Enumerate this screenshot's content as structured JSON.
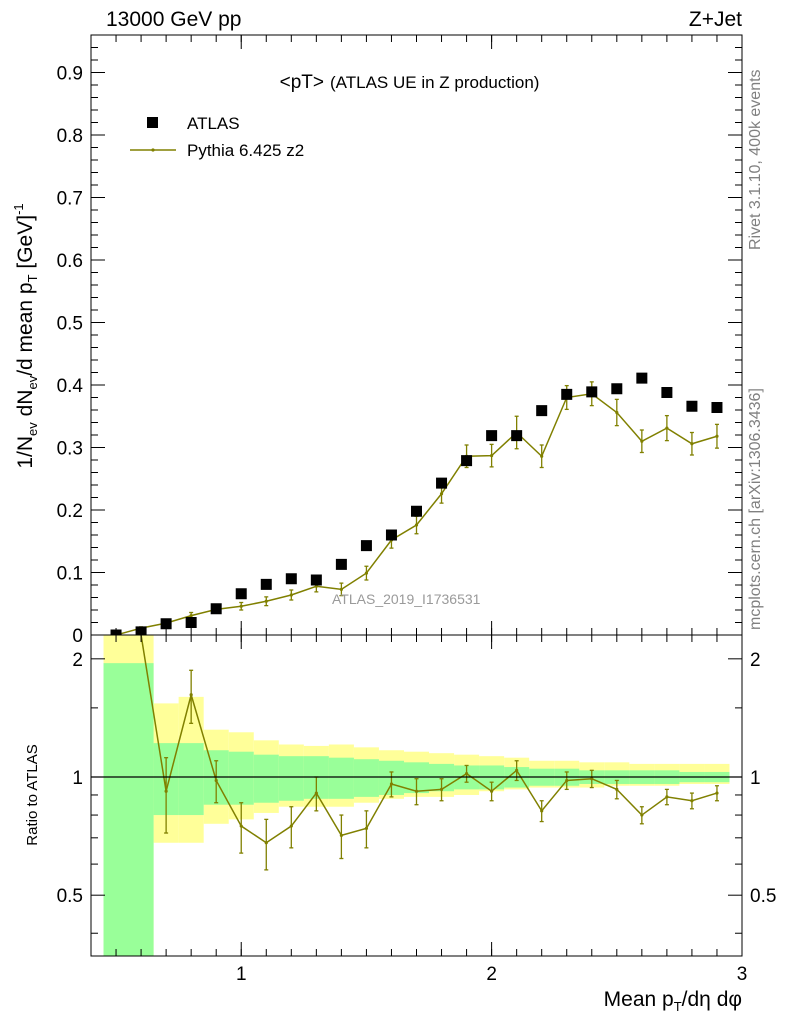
{
  "header": {
    "left": "13000 GeV pp",
    "right": "Z+Jet"
  },
  "side_labels": {
    "rivet": "Rivet 3.1.10,  400k events",
    "mcplots": "mcplots.cern.ch [arXiv:1306.3436]"
  },
  "chart_data": [
    {
      "type": "scatter",
      "title_main": "<pT>",
      "title_sub": "(ATLAS UE in Z production)",
      "watermark": "ATLAS_2019_I1736531",
      "ylabel": "1/N_ev dN_ev/d mean p_T [GeV]^-1",
      "xlim": [
        0.4,
        3.0
      ],
      "ylim": [
        0,
        0.96
      ],
      "yticks": [
        0,
        0.1,
        0.2,
        0.3,
        0.4,
        0.5,
        0.6,
        0.7,
        0.8,
        0.9
      ],
      "ytick_labels": [
        "0",
        "0.1",
        "0.2",
        "0.3",
        "0.4",
        "0.5",
        "0.6",
        "0.7",
        "0.8",
        "0.9"
      ],
      "legend_position": "top-left",
      "series": [
        {
          "name": "ATLAS",
          "color": "#000000",
          "marker": "square",
          "x": [
            0.5,
            0.6,
            0.7,
            0.8,
            0.9,
            1.0,
            1.1,
            1.2,
            1.3,
            1.4,
            1.5,
            1.6,
            1.7,
            1.8,
            1.9,
            2.0,
            2.1,
            2.2,
            2.3,
            2.4,
            2.5,
            2.6,
            2.7,
            2.8,
            2.9
          ],
          "y": [
            0.0,
            0.005,
            0.018,
            0.02,
            0.042,
            0.066,
            0.081,
            0.09,
            0.088,
            0.113,
            0.143,
            0.16,
            0.198,
            0.243,
            0.279,
            0.319,
            0.319,
            0.359,
            0.385,
            0.389,
            0.394,
            0.411,
            0.388,
            0.366,
            0.364
          ]
        },
        {
          "name": "Pythia 6.425 z2",
          "color": "#808000",
          "marker": "line",
          "x": [
            0.5,
            0.6,
            0.7,
            0.8,
            0.9,
            1.0,
            1.1,
            1.2,
            1.3,
            1.4,
            1.5,
            1.6,
            1.7,
            1.8,
            1.9,
            2.0,
            2.1,
            2.2,
            2.3,
            2.4,
            2.5,
            2.6,
            2.7,
            2.8,
            2.9
          ],
          "y": [
            0.0,
            0.011,
            0.019,
            0.031,
            0.041,
            0.046,
            0.054,
            0.064,
            0.078,
            0.073,
            0.099,
            0.152,
            0.176,
            0.226,
            0.286,
            0.287,
            0.324,
            0.286,
            0.38,
            0.386,
            0.356,
            0.31,
            0.331,
            0.306,
            0.318
          ],
          "yerr": [
            0.001,
            0.002,
            0.003,
            0.005,
            0.005,
            0.006,
            0.007,
            0.008,
            0.009,
            0.01,
            0.011,
            0.013,
            0.014,
            0.015,
            0.018,
            0.018,
            0.026,
            0.018,
            0.019,
            0.019,
            0.021,
            0.018,
            0.02,
            0.018,
            0.019
          ]
        }
      ]
    },
    {
      "type": "line",
      "ylabel": "Ratio to ATLAS",
      "xlabel": "Mean p_T/dη dφ",
      "xlim": [
        0.4,
        3.0
      ],
      "ylim": [
        0.35,
        2.3
      ],
      "yticks": [
        0.5,
        1,
        2
      ],
      "ytick_labels": [
        "0.5",
        "1",
        "2"
      ],
      "xticks": [
        1,
        2,
        3
      ],
      "xtick_labels": [
        "1",
        "2",
        "3"
      ],
      "bins_low": [
        0.45,
        0.65,
        0.75,
        0.85,
        0.95,
        1.05,
        1.15,
        1.25,
        1.35,
        1.45,
        1.55,
        1.65,
        1.75,
        1.85,
        1.95,
        2.05,
        2.15,
        2.25,
        2.35,
        2.45,
        2.55,
        2.65,
        2.75,
        2.85
      ],
      "bins_high": [
        0.65,
        0.75,
        0.85,
        0.95,
        1.05,
        1.15,
        1.25,
        1.35,
        1.45,
        1.55,
        1.65,
        1.75,
        1.85,
        1.95,
        2.05,
        2.15,
        2.25,
        2.35,
        2.45,
        2.55,
        2.65,
        2.75,
        2.85,
        2.95
      ],
      "band_stat_low": [
        0.3,
        0.8,
        0.8,
        0.85,
        0.85,
        0.86,
        0.87,
        0.88,
        0.88,
        0.89,
        0.9,
        0.91,
        0.92,
        0.93,
        0.93,
        0.94,
        0.95,
        0.95,
        0.96,
        0.96,
        0.96,
        0.96,
        0.97,
        0.97
      ],
      "band_stat_high": [
        1.95,
        1.22,
        1.22,
        1.17,
        1.16,
        1.14,
        1.13,
        1.13,
        1.12,
        1.11,
        1.1,
        1.09,
        1.08,
        1.07,
        1.07,
        1.06,
        1.05,
        1.05,
        1.04,
        1.04,
        1.04,
        1.04,
        1.03,
        1.03
      ],
      "band_tot_low": [
        0.3,
        0.68,
        0.68,
        0.76,
        0.78,
        0.81,
        0.84,
        0.84,
        0.84,
        0.86,
        0.88,
        0.89,
        0.89,
        0.9,
        0.92,
        0.93,
        0.94,
        0.94,
        0.94,
        0.95,
        0.95,
        0.95,
        0.96,
        0.96
      ],
      "band_tot_high": [
        2.3,
        1.54,
        1.6,
        1.32,
        1.3,
        1.24,
        1.21,
        1.2,
        1.21,
        1.19,
        1.17,
        1.16,
        1.15,
        1.14,
        1.13,
        1.12,
        1.1,
        1.1,
        1.09,
        1.09,
        1.08,
        1.08,
        1.08,
        1.08
      ],
      "series": [
        {
          "name": "Pythia 6.425 z2",
          "color": "#808000",
          "x": [
            0.6,
            0.7,
            0.8,
            0.9,
            1.0,
            1.1,
            1.2,
            1.3,
            1.4,
            1.5,
            1.6,
            1.7,
            1.8,
            1.9,
            2.0,
            2.1,
            2.2,
            2.3,
            2.4,
            2.5,
            2.6,
            2.7,
            2.8,
            2.9
          ],
          "y": [
            2.4,
            0.92,
            1.62,
            0.98,
            0.75,
            0.68,
            0.75,
            0.91,
            0.71,
            0.74,
            0.96,
            0.92,
            0.93,
            1.02,
            0.92,
            1.04,
            0.82,
            0.98,
            0.99,
            0.93,
            0.8,
            0.89,
            0.87,
            0.91
          ],
          "yerr": [
            0.2,
            0.2,
            0.25,
            0.12,
            0.11,
            0.1,
            0.09,
            0.09,
            0.09,
            0.08,
            0.07,
            0.07,
            0.06,
            0.05,
            0.05,
            0.06,
            0.05,
            0.05,
            0.05,
            0.05,
            0.04,
            0.04,
            0.04,
            0.04
          ]
        }
      ]
    }
  ]
}
